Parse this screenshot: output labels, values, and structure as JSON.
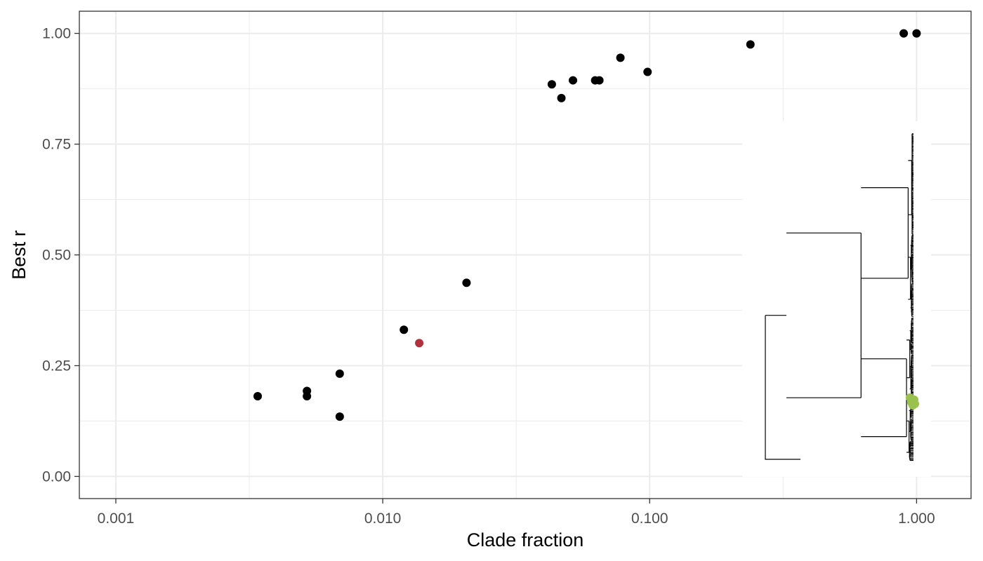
{
  "chart_data": {
    "type": "scatter",
    "title": "",
    "xlabel": "Clade fraction",
    "ylabel": "Best r",
    "x_scale": "log10",
    "xlim": [
      0.00073,
      1.6
    ],
    "ylim": [
      -0.05,
      1.05
    ],
    "x_ticks": [
      0.001,
      0.01,
      0.1,
      1
    ],
    "x_tick_labels": [
      "0.001",
      "0.010",
      "0.100",
      "1.000"
    ],
    "y_ticks": [
      0,
      0.25,
      0.5,
      0.75,
      1
    ],
    "y_tick_labels": [
      "0.00",
      "0.25",
      "0.50",
      "0.75",
      "1.00"
    ],
    "grid": true,
    "theme": "bw",
    "points": [
      {
        "x": 0.0034,
        "y": 0.181,
        "color": "#000000"
      },
      {
        "x": 0.0052,
        "y": 0.193,
        "color": "#000000"
      },
      {
        "x": 0.0052,
        "y": 0.181,
        "color": "#000000"
      },
      {
        "x": 0.0069,
        "y": 0.232,
        "color": "#000000"
      },
      {
        "x": 0.0069,
        "y": 0.135,
        "color": "#000000"
      },
      {
        "x": 0.012,
        "y": 0.331,
        "color": "#000000"
      },
      {
        "x": 0.0137,
        "y": 0.301,
        "color": "#b0323a"
      },
      {
        "x": 0.0206,
        "y": 0.437,
        "color": "#000000"
      },
      {
        "x": 0.043,
        "y": 0.885,
        "color": "#000000"
      },
      {
        "x": 0.0467,
        "y": 0.854,
        "color": "#000000"
      },
      {
        "x": 0.0516,
        "y": 0.894,
        "color": "#000000"
      },
      {
        "x": 0.0625,
        "y": 0.894,
        "color": "#000000"
      },
      {
        "x": 0.0648,
        "y": 0.894,
        "color": "#000000"
      },
      {
        "x": 0.0777,
        "y": 0.945,
        "color": "#000000"
      },
      {
        "x": 0.0982,
        "y": 0.913,
        "color": "#000000"
      },
      {
        "x": 0.2385,
        "y": 0.975,
        "color": "#000000"
      },
      {
        "x": 0.895,
        "y": 1.0,
        "color": "#000000"
      },
      {
        "x": 1.0,
        "y": 1.0,
        "color": "#000000"
      }
    ],
    "inset": {
      "type": "phylogenetic-tree",
      "line_color": "#000000",
      "highlight_color": "#98c24d"
    }
  }
}
